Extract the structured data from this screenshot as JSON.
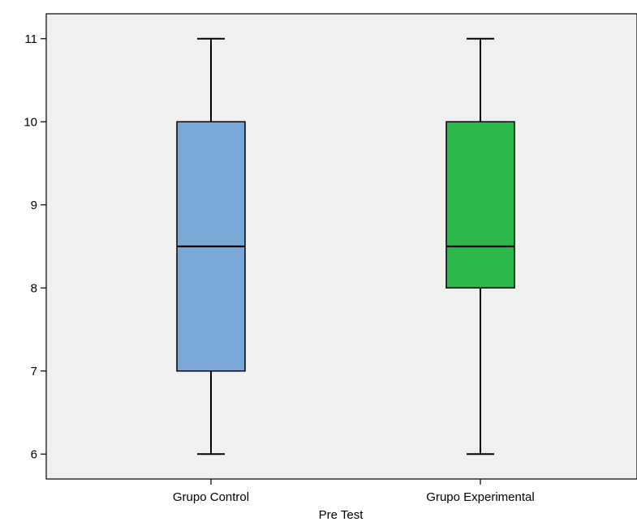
{
  "chart_data": {
    "type": "boxplot",
    "title": "",
    "xlabel": "Pre Test",
    "ylabel": "",
    "ylim": [
      5.7,
      11.3
    ],
    "yticks": [
      6,
      7,
      8,
      9,
      10,
      11
    ],
    "grid": false,
    "plot_background": "#f0f0f0",
    "categories": [
      "Grupo Control",
      "Grupo Experimental"
    ],
    "boxes": [
      {
        "category": "Grupo Control",
        "min": 6,
        "q1": 7,
        "median": 8.5,
        "q3": 10,
        "max": 11,
        "color": "#79a7d6"
      },
      {
        "category": "Grupo Experimental",
        "min": 6,
        "q1": 8,
        "median": 8.5,
        "q3": 10,
        "max": 11,
        "color": "#2db84c"
      }
    ]
  }
}
